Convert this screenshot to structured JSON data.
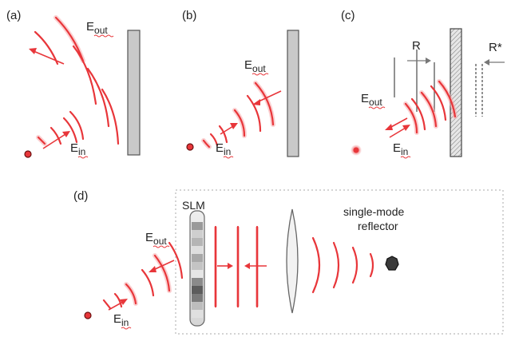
{
  "panels": {
    "a": {
      "tag": "(a)",
      "e_out": "E",
      "e_out_sub": "out",
      "e_in": "E",
      "e_in_sub": "in"
    },
    "b": {
      "tag": "(b)",
      "e_out": "E",
      "e_out_sub": "out",
      "e_in": "E",
      "e_in_sub": "in"
    },
    "c": {
      "tag": "(c)",
      "r_label": "R",
      "r_star_label": "R*",
      "e_out": "E",
      "e_out_sub": "out",
      "e_in": "E",
      "e_in_sub": "in"
    },
    "d": {
      "tag": "(d)",
      "slm_label": "SLM",
      "reflector_line1": "single-mode",
      "reflector_line2": "reflector",
      "e_out": "E",
      "e_out_sub": "out",
      "e_in": "E",
      "e_in_sub": "in"
    }
  },
  "colors": {
    "wave": "#e8363a",
    "glow": "#f7a9ab",
    "mirror": "#c9c9c9",
    "reflector": "#444444",
    "source": "#e8363a"
  }
}
